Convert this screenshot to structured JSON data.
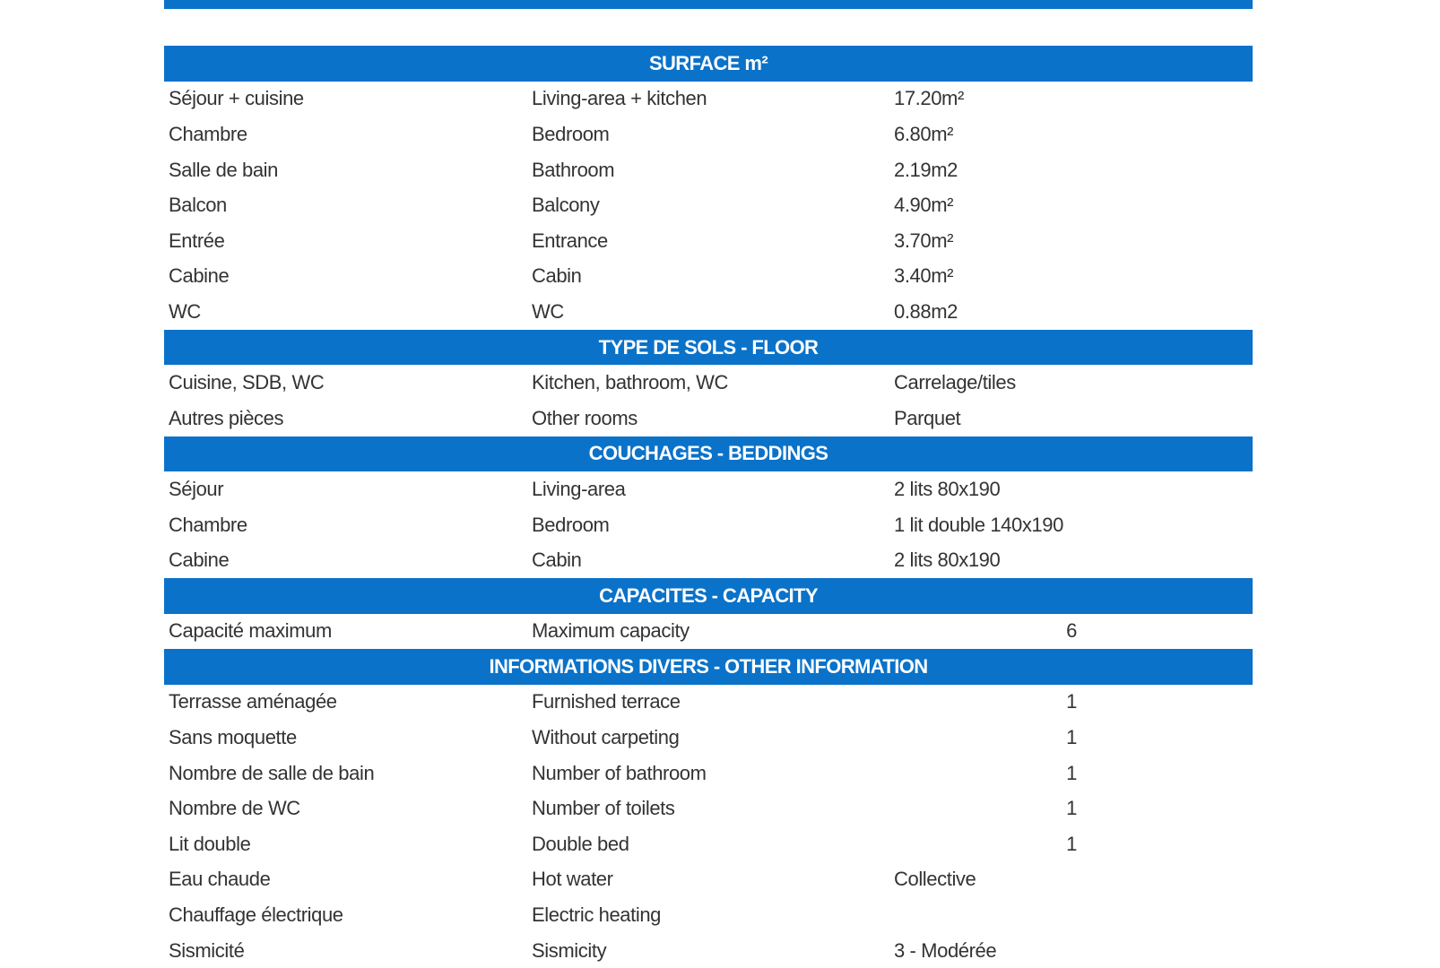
{
  "accent_color": "#0a72c9",
  "sections": [
    {
      "title": "SURFACE m²",
      "rows": [
        {
          "fr": "Séjour + cuisine",
          "en": "Living-area + kitchen",
          "value": "17.20m²"
        },
        {
          "fr": "Chambre",
          "en": "Bedroom",
          "value": "6.80m²"
        },
        {
          "fr": "Salle de bain",
          "en": "Bathroom",
          "value": "2.19m2"
        },
        {
          "fr": "Balcon",
          "en": "Balcony",
          "value": "4.90m²"
        },
        {
          "fr": "Entrée",
          "en": "Entrance",
          "value": "3.70m²"
        },
        {
          "fr": "Cabine",
          "en": "Cabin",
          "value": "3.40m²"
        },
        {
          "fr": "WC",
          "en": "WC",
          "value": "0.88m2"
        }
      ]
    },
    {
      "title": "TYPE DE SOLS - FLOOR",
      "rows": [
        {
          "fr": "Cuisine, SDB, WC",
          "en": "Kitchen, bathroom, WC",
          "value": "Carrelage/tiles"
        },
        {
          "fr": "Autres pièces",
          "en": "Other rooms",
          "value": "Parquet"
        }
      ]
    },
    {
      "title": "COUCHAGES - BEDDINGS",
      "rows": [
        {
          "fr": "Séjour",
          "en": "Living-area",
          "value": "2 lits 80x190"
        },
        {
          "fr": "Chambre",
          "en": "Bedroom",
          "value": "1 lit double 140x190"
        },
        {
          "fr": "Cabine",
          "en": "Cabin",
          "value": "2 lits 80x190"
        }
      ]
    },
    {
      "title": "CAPACITES - CAPACITY",
      "rows": [
        {
          "fr": "Capacité maximum",
          "en": "Maximum capacity",
          "count": "6"
        }
      ]
    },
    {
      "title": "INFORMATIONS DIVERS - OTHER INFORMATION",
      "rows": [
        {
          "fr": "Terrasse aménagée",
          "en": "Furnished terrace",
          "count": "1"
        },
        {
          "fr": "Sans moquette",
          "en": "Without carpeting",
          "count": "1"
        },
        {
          "fr": "Nombre de salle de bain",
          "en": "Number of bathroom",
          "count": "1"
        },
        {
          "fr": "Nombre de WC",
          "en": "Number of toilets",
          "count": "1"
        },
        {
          "fr": "Lit double",
          "en": "Double bed",
          "count": "1"
        },
        {
          "fr": "Eau chaude",
          "en": "Hot water",
          "value": "Collective"
        },
        {
          "fr": "Chauffage électrique",
          "en": "Electric heating"
        },
        {
          "fr": "Sismicité",
          "en": "Sismicity",
          "value": "3 - Modérée"
        }
      ]
    }
  ]
}
